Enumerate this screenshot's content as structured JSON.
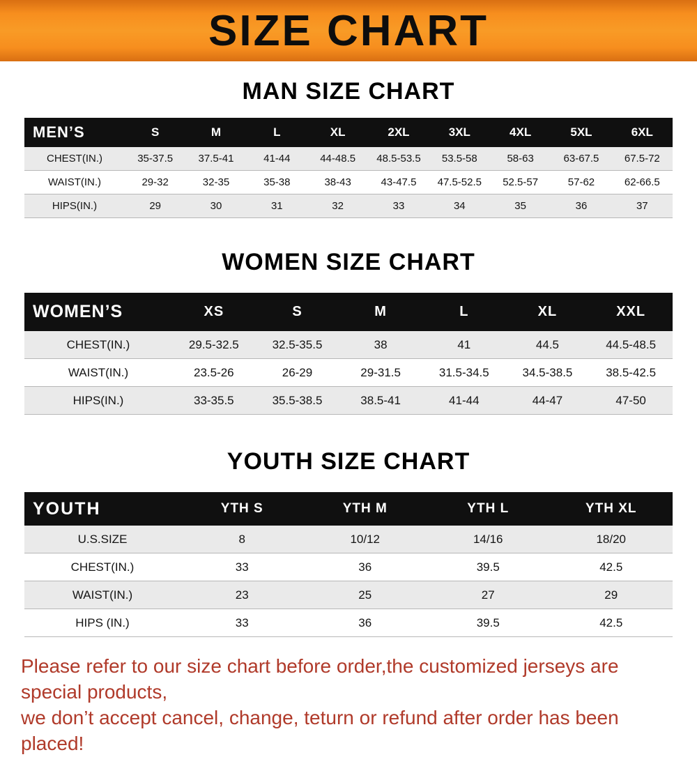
{
  "banner": {
    "title": "SIZE CHART",
    "bg_color": "#f78e1e"
  },
  "sections": [
    {
      "title": "MAN SIZE CHART",
      "table": {
        "corner": "MEN’S",
        "columns": [
          "S",
          "M",
          "L",
          "XL",
          "2XL",
          "3XL",
          "4XL",
          "5XL",
          "6XL"
        ],
        "rows": [
          {
            "label": "CHEST(IN.)",
            "values": [
              "35-37.5",
              "37.5-41",
              "41-44",
              "44-48.5",
              "48.5-53.5",
              "53.5-58",
              "58-63",
              "63-67.5",
              "67.5-72"
            ]
          },
          {
            "label": "WAIST(IN.)",
            "values": [
              "29-32",
              "32-35",
              "35-38",
              "38-43",
              "43-47.5",
              "47.5-52.5",
              "52.5-57",
              "57-62",
              "62-66.5"
            ]
          },
          {
            "label": "HIPS(IN.)",
            "values": [
              "29",
              "30",
              "31",
              "32",
              "33",
              "34",
              "35",
              "36",
              "37"
            ]
          }
        ]
      }
    },
    {
      "title": "WOMEN SIZE CHART",
      "table": {
        "corner": "WOMEN’S",
        "columns": [
          "XS",
          "S",
          "M",
          "L",
          "XL",
          "XXL"
        ],
        "rows": [
          {
            "label": "CHEST(IN.)",
            "values": [
              "29.5-32.5",
              "32.5-35.5",
              "38",
              "41",
              "44.5",
              "44.5-48.5"
            ]
          },
          {
            "label": "WAIST(IN.)",
            "values": [
              "23.5-26",
              "26-29",
              "29-31.5",
              "31.5-34.5",
              "34.5-38.5",
              "38.5-42.5"
            ]
          },
          {
            "label": "HIPS(IN.)",
            "values": [
              "33-35.5",
              "35.5-38.5",
              "38.5-41",
              "41-44",
              "44-47",
              "47-50"
            ]
          }
        ]
      }
    },
    {
      "title": "YOUTH SIZE CHART",
      "table": {
        "corner": "YOUTH",
        "columns": [
          "YTH S",
          "YTH M",
          "YTH L",
          "YTH XL"
        ],
        "rows": [
          {
            "label": "U.S.SIZE",
            "values": [
              "8",
              "10/12",
              "14/16",
              "18/20"
            ]
          },
          {
            "label": "CHEST(IN.)",
            "values": [
              "33",
              "36",
              "39.5",
              "42.5"
            ]
          },
          {
            "label": "WAIST(IN.)",
            "values": [
              "23",
              "25",
              "27",
              "29"
            ]
          },
          {
            "label": "HIPS (IN.)",
            "values": [
              "33",
              "36",
              "39.5",
              "42.5"
            ]
          }
        ]
      }
    }
  ],
  "footer": {
    "line1": "Please refer to our size chart before order,the customized jerseys are special products,",
    "line2": "we don’t accept cancel, change, teturn or refund after order has been placed!",
    "text_color": "#b03a2a"
  }
}
